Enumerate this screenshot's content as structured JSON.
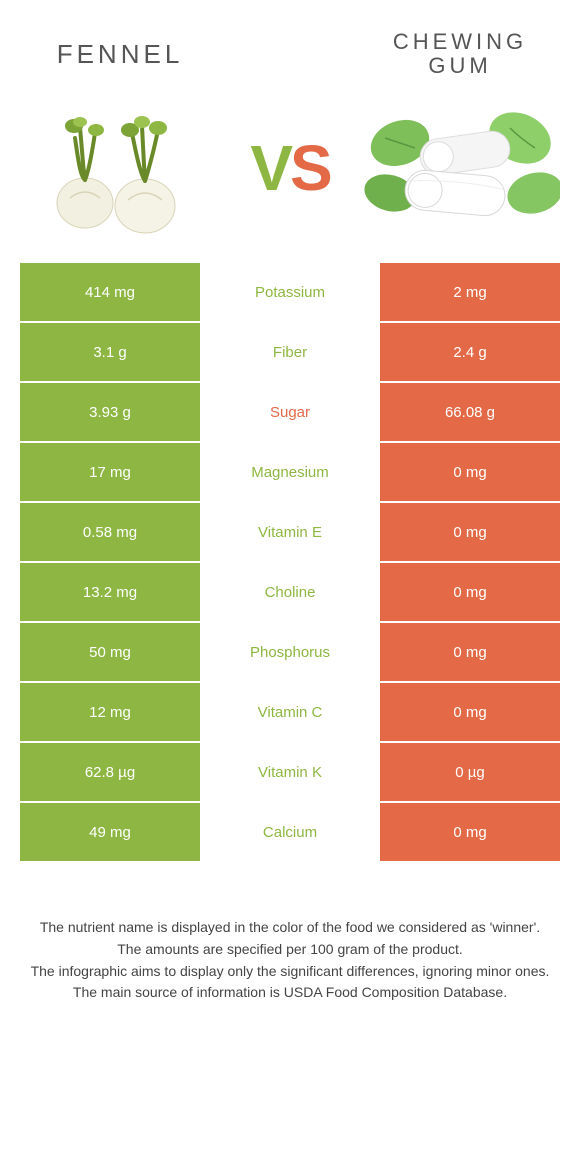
{
  "colors": {
    "left": "#8db742",
    "right": "#e36947",
    "bg": "#ffffff",
    "text": "#555555",
    "footer": "#444444"
  },
  "header": {
    "left_title": "Fennel",
    "right_title": "Chewing gum",
    "vs_v": "V",
    "vs_s": "S"
  },
  "table": {
    "rows": [
      {
        "left": "414 mg",
        "label": "Potassium",
        "right": "2 mg",
        "winner": "left"
      },
      {
        "left": "3.1 g",
        "label": "Fiber",
        "right": "2.4 g",
        "winner": "left"
      },
      {
        "left": "3.93 g",
        "label": "Sugar",
        "right": "66.08 g",
        "winner": "right"
      },
      {
        "left": "17 mg",
        "label": "Magnesium",
        "right": "0 mg",
        "winner": "left"
      },
      {
        "left": "0.58 mg",
        "label": "Vitamin E",
        "right": "0 mg",
        "winner": "left"
      },
      {
        "left": "13.2 mg",
        "label": "Choline",
        "right": "0 mg",
        "winner": "left"
      },
      {
        "left": "50 mg",
        "label": "Phosphorus",
        "right": "0 mg",
        "winner": "left"
      },
      {
        "left": "12 mg",
        "label": "Vitamin C",
        "right": "0 mg",
        "winner": "left"
      },
      {
        "left": "62.8 µg",
        "label": "Vitamin K",
        "right": "0 µg",
        "winner": "left"
      },
      {
        "left": "49 mg",
        "label": "Calcium",
        "right": "0 mg",
        "winner": "left"
      }
    ]
  },
  "footer": {
    "line1": "The nutrient name is displayed in the color of the food we considered as 'winner'.",
    "line2": "The amounts are specified per 100 gram of the product.",
    "line3": "The infographic aims to display only the significant differences, ignoring minor ones.",
    "line4": "The main source of information is USDA Food Composition Database."
  }
}
